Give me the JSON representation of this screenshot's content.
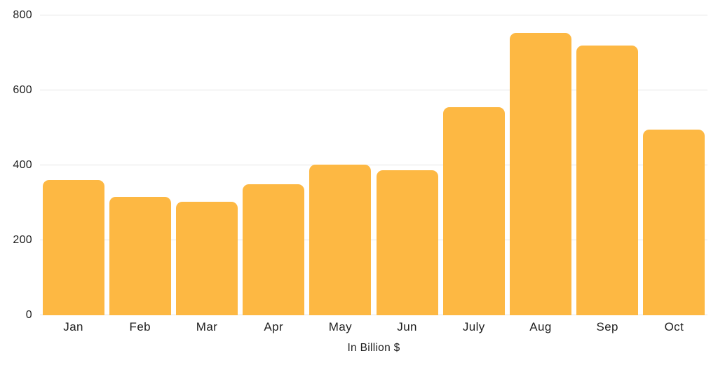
{
  "chart_data": {
    "type": "bar",
    "categories": [
      "Jan",
      "Feb",
      "Mar",
      "Apr",
      "May",
      "Jun",
      "July",
      "Aug",
      "Sep",
      "Oct"
    ],
    "values": [
      361,
      316,
      303,
      350,
      401,
      387,
      556,
      753,
      719,
      495
    ],
    "title": "",
    "xlabel": "In Billion $",
    "ylabel": "",
    "ylim": [
      0,
      800
    ],
    "yticks": [
      0,
      200,
      400,
      600,
      800
    ],
    "legend": "none",
    "grid": "horizontal",
    "colors": {
      "bar": "#FDB843",
      "gridline": "#E5E5E5",
      "text": "#1F1F1F",
      "background": "#FFFFFF"
    }
  }
}
